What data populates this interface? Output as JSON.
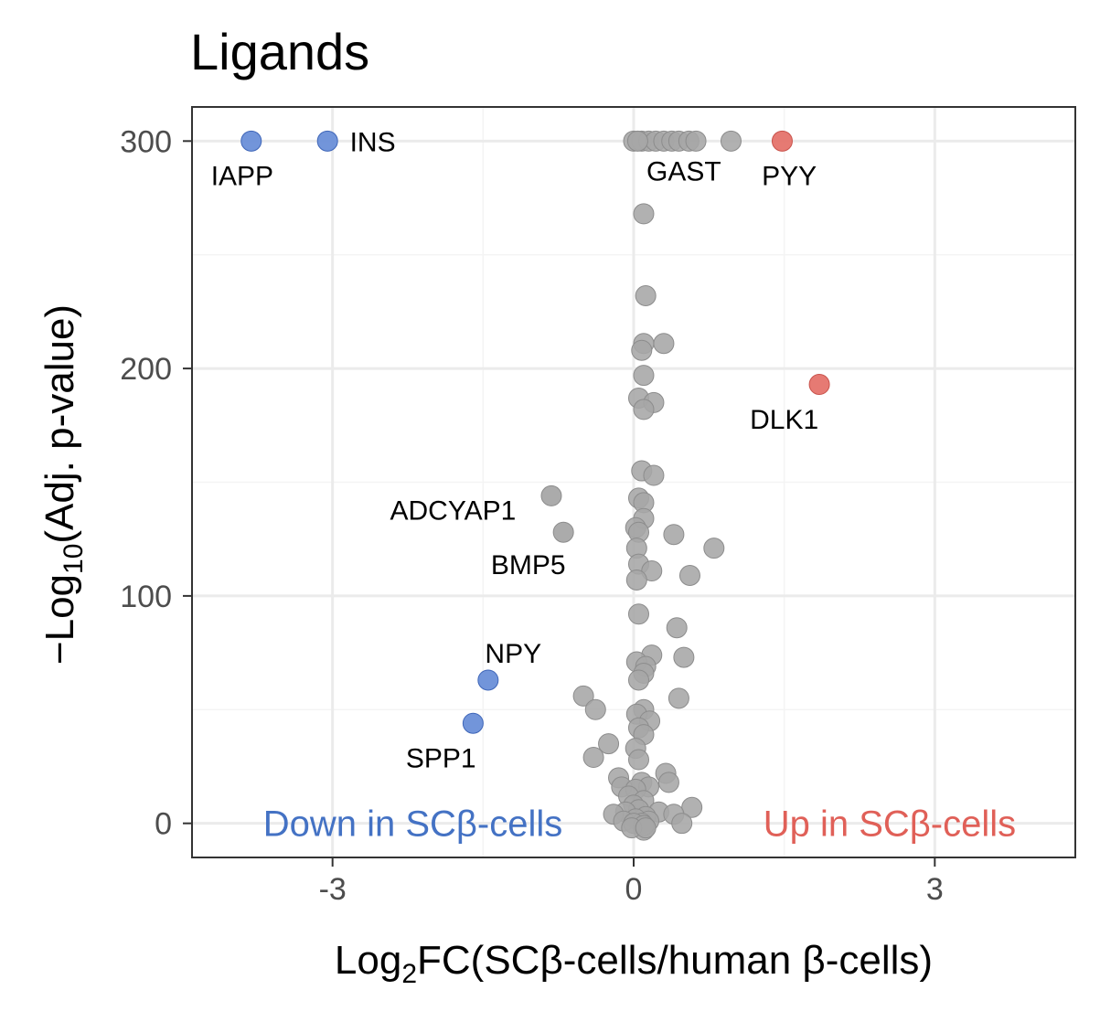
{
  "chart_data": {
    "type": "scatter",
    "title": "Ligands",
    "xlabel": "Log2FC(SCβ-cells/human β-cells)",
    "xlabel_parts": {
      "pre": "Log",
      "sub": "2",
      "post": "FC(SCβ-cells/human β-cells)"
    },
    "ylabel": "−Log10(Adj. p-value)",
    "ylabel_parts": {
      "pre": "−Log",
      "sub": "10",
      "post": "(Adj. p-value)"
    },
    "xlim": [
      -4.4,
      4.4
    ],
    "ylim": [
      -15,
      315
    ],
    "x_ticks": [
      {
        "value": -3,
        "label": "-3"
      },
      {
        "value": 0,
        "label": "0"
      },
      {
        "value": 3,
        "label": "3"
      }
    ],
    "y_ticks": [
      {
        "value": 0,
        "label": "0"
      },
      {
        "value": 100,
        "label": "100"
      },
      {
        "value": 200,
        "label": "200"
      },
      {
        "value": 300,
        "label": "300"
      }
    ],
    "grid": true,
    "colors": {
      "down": "#6a8fd8",
      "up": "#e5736b",
      "ns": "#a6a6a6",
      "down_text": "#4472c4",
      "up_text": "#e06058"
    },
    "annotations": [
      {
        "text": "Down in SCβ-cells",
        "group": "down",
        "position": "bottom-left"
      },
      {
        "text": "Up in SCβ-cells",
        "group": "up",
        "position": "bottom-right"
      }
    ],
    "labeled_points": [
      {
        "label": "IAPP",
        "x": -3.81,
        "y": 300,
        "group": "down",
        "label_x": -3.9,
        "label_y": 285
      },
      {
        "label": "INS",
        "x": -3.05,
        "y": 300,
        "group": "down",
        "label_x": -2.6,
        "label_y": 300
      },
      {
        "label": "GAST",
        "x": 0.04,
        "y": 300,
        "group": "ns",
        "label_x": 0.5,
        "label_y": 287
      },
      {
        "label": "PYY",
        "x": 1.48,
        "y": 300,
        "group": "up",
        "label_x": 1.55,
        "label_y": 285
      },
      {
        "label": "DLK1",
        "x": 1.85,
        "y": 193,
        "group": "up",
        "label_x": 1.5,
        "label_y": 178
      },
      {
        "label": "ADCYAP1",
        "x": -0.82,
        "y": 144,
        "group": "ns",
        "label_x": -1.8,
        "label_y": 138
      },
      {
        "label": "BMP5",
        "x": -0.7,
        "y": 128,
        "group": "ns",
        "label_x": -1.05,
        "label_y": 114
      },
      {
        "label": "NPY",
        "x": -1.45,
        "y": 63,
        "group": "down",
        "label_x": -1.2,
        "label_y": 75
      },
      {
        "label": "SPP1",
        "x": -1.6,
        "y": 44,
        "group": "down",
        "label_x": -1.92,
        "label_y": 29
      }
    ],
    "points": [
      {
        "x": 0.0,
        "y": 300
      },
      {
        "x": 0.08,
        "y": 300
      },
      {
        "x": 0.15,
        "y": 300
      },
      {
        "x": 0.22,
        "y": 300
      },
      {
        "x": 0.3,
        "y": 300
      },
      {
        "x": 0.38,
        "y": 300
      },
      {
        "x": 0.45,
        "y": 300
      },
      {
        "x": 0.55,
        "y": 300
      },
      {
        "x": 0.62,
        "y": 300
      },
      {
        "x": 0.97,
        "y": 300
      },
      {
        "x": 0.1,
        "y": 268
      },
      {
        "x": 0.12,
        "y": 232
      },
      {
        "x": 0.1,
        "y": 211
      },
      {
        "x": 0.3,
        "y": 211
      },
      {
        "x": 0.08,
        "y": 208
      },
      {
        "x": 0.1,
        "y": 197
      },
      {
        "x": 0.05,
        "y": 187
      },
      {
        "x": 0.2,
        "y": 185
      },
      {
        "x": 0.1,
        "y": 182
      },
      {
        "x": 0.08,
        "y": 155
      },
      {
        "x": 0.2,
        "y": 153
      },
      {
        "x": 0.05,
        "y": 143
      },
      {
        "x": 0.1,
        "y": 141
      },
      {
        "x": 0.1,
        "y": 134
      },
      {
        "x": 0.02,
        "y": 130
      },
      {
        "x": 0.05,
        "y": 128
      },
      {
        "x": 0.4,
        "y": 127
      },
      {
        "x": 0.8,
        "y": 121
      },
      {
        "x": 0.03,
        "y": 121
      },
      {
        "x": 0.05,
        "y": 114
      },
      {
        "x": 0.18,
        "y": 111
      },
      {
        "x": 0.56,
        "y": 109
      },
      {
        "x": 0.03,
        "y": 107
      },
      {
        "x": 0.05,
        "y": 92
      },
      {
        "x": 0.43,
        "y": 86
      },
      {
        "x": 0.18,
        "y": 74
      },
      {
        "x": 0.5,
        "y": 73
      },
      {
        "x": 0.03,
        "y": 71
      },
      {
        "x": 0.12,
        "y": 69
      },
      {
        "x": 0.1,
        "y": 66
      },
      {
        "x": 0.05,
        "y": 63
      },
      {
        "x": 0.1,
        "y": -3
      },
      {
        "x": -0.5,
        "y": 56
      },
      {
        "x": 0.45,
        "y": 55
      },
      {
        "x": -0.38,
        "y": 50
      },
      {
        "x": 0.1,
        "y": 50
      },
      {
        "x": 0.03,
        "y": 48
      },
      {
        "x": 0.16,
        "y": 45
      },
      {
        "x": 0.05,
        "y": 42
      },
      {
        "x": 0.1,
        "y": 39
      },
      {
        "x": -0.25,
        "y": 35
      },
      {
        "x": 0.02,
        "y": 33
      },
      {
        "x": -0.4,
        "y": 29
      },
      {
        "x": 0.05,
        "y": 28
      },
      {
        "x": 0.32,
        "y": 22
      },
      {
        "x": -0.15,
        "y": 20
      },
      {
        "x": 0.35,
        "y": 18
      },
      {
        "x": 0.08,
        "y": 18
      },
      {
        "x": -0.12,
        "y": 16
      },
      {
        "x": 0.15,
        "y": 16
      },
      {
        "x": 0.02,
        "y": 15
      },
      {
        "x": -0.05,
        "y": 12
      },
      {
        "x": 0.1,
        "y": 10
      },
      {
        "x": 0.0,
        "y": 8
      },
      {
        "x": 0.58,
        "y": 7
      },
      {
        "x": 0.05,
        "y": 6
      },
      {
        "x": -0.08,
        "y": 5
      },
      {
        "x": 0.25,
        "y": 5
      },
      {
        "x": -0.2,
        "y": 4
      },
      {
        "x": 0.4,
        "y": 4
      },
      {
        "x": 0.12,
        "y": 3
      },
      {
        "x": 0.02,
        "y": 2
      },
      {
        "x": -0.1,
        "y": 1
      },
      {
        "x": 0.15,
        "y": 1
      },
      {
        "x": 0.08,
        "y": 0
      },
      {
        "x": 0.0,
        "y": 0
      },
      {
        "x": 0.1,
        "y": -1
      },
      {
        "x": 0.48,
        "y": 0
      },
      {
        "x": -0.02,
        "y": -2
      },
      {
        "x": 0.12,
        "y": -2
      }
    ]
  }
}
